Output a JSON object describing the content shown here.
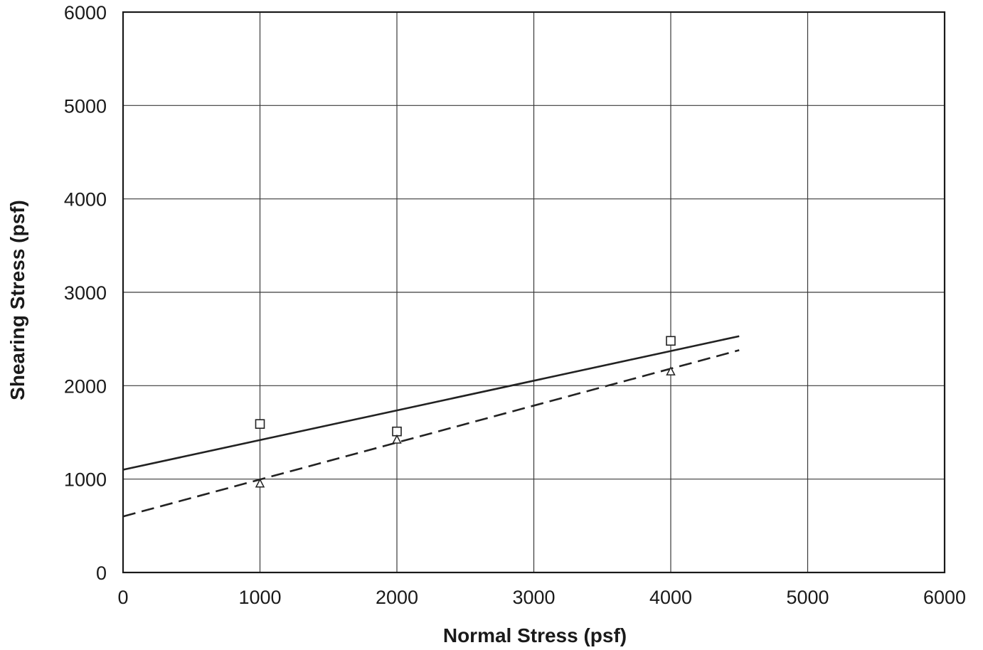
{
  "chart_data": {
    "type": "scatter",
    "title": "",
    "xlabel": "Normal Stress (psf)",
    "ylabel": "Shearing Stress (psf)",
    "xlim": [
      0,
      6000
    ],
    "ylim": [
      0,
      6000
    ],
    "x_ticks": [
      "0",
      "1000",
      "2000",
      "3000",
      "4000",
      "5000",
      "6000"
    ],
    "y_ticks": [
      "0",
      "1000",
      "2000",
      "3000",
      "4000",
      "5000",
      "6000"
    ],
    "grid": true,
    "legend": "none",
    "series": [
      {
        "marker": "square",
        "color": "#222222",
        "x": [
          1000,
          2000,
          4000
        ],
        "y": [
          1590,
          1510,
          2480
        ]
      },
      {
        "marker": "triangle",
        "color": "#222222",
        "x": [
          1000,
          2000,
          4000
        ],
        "y": [
          950,
          1420,
          2150
        ]
      }
    ],
    "fit_lines": [
      {
        "style": "solid",
        "color": "#222222",
        "x": [
          0,
          4500
        ],
        "y": [
          1100,
          2530
        ]
      },
      {
        "style": "dashed",
        "color": "#222222",
        "x": [
          0,
          4500
        ],
        "y": [
          600,
          2380
        ]
      }
    ]
  }
}
